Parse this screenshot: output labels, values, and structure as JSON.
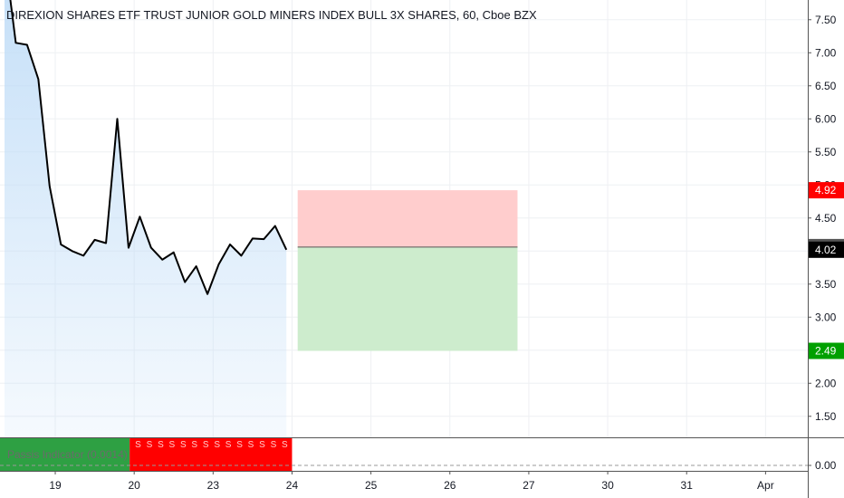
{
  "title": "DIREXION SHARES ETF TRUST JUNIOR GOLD MINERS INDEX BULL 3X SHARES, 60, Cboe BZX",
  "indicator": {
    "label": "Passis Indicator (0.0014)",
    "value_label": "0.00",
    "signal_char": "S"
  },
  "colors": {
    "line": "#000000",
    "area": "#bfdcf7",
    "grid": "#eef0f3",
    "stop_zone": "#ffcdcd",
    "target_zone": "#cdeccd",
    "stop_badge": "#ff0000",
    "target_badge": "#00a000",
    "entry_badge": "#555555",
    "last_badge": "#000000",
    "ind_green": "#2ea043",
    "ind_red": "#ff0000"
  },
  "chart_data": {
    "type": "line",
    "y_ticks": [
      "1.50",
      "2.00",
      "2.50",
      "3.00",
      "3.50",
      "4.00",
      "4.50",
      "5.00",
      "5.50",
      "6.00",
      "6.50",
      "7.00",
      "7.50"
    ],
    "x_ticks": [
      {
        "label": "19",
        "i": 4.5
      },
      {
        "label": "20",
        "i": 11.5
      },
      {
        "label": "23",
        "i": 18.5
      },
      {
        "label": "24",
        "i": 25.5
      },
      {
        "label": "25",
        "i": 32.5
      },
      {
        "label": "26",
        "i": 39.5
      },
      {
        "label": "27",
        "i": 46.5
      },
      {
        "label": "30",
        "i": 53.5
      },
      {
        "label": "31",
        "i": 60.5
      },
      {
        "label": "Apr",
        "i": 67.5
      }
    ],
    "series": [
      {
        "values": [
          8.5,
          7.15,
          7.12,
          6.6,
          4.98,
          4.1,
          4.0,
          3.93,
          4.17,
          4.12,
          6.0,
          4.05,
          4.52,
          4.05,
          3.87,
          3.98,
          3.53,
          3.77,
          3.35,
          3.8,
          4.1,
          3.93,
          4.19,
          4.18,
          4.38,
          4.02
        ]
      }
    ],
    "position": {
      "stop": 4.92,
      "entry": 4.06,
      "target": 2.49,
      "last": 4.02,
      "end_i": 45.5
    },
    "indicator_signals": {
      "green_until_i": 11.5,
      "red_until_i": 25.5
    }
  }
}
